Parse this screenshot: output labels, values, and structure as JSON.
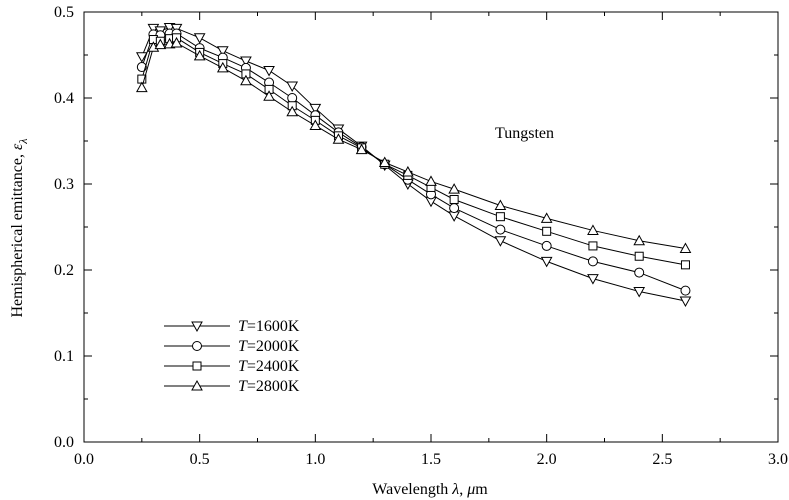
{
  "chart_data": {
    "type": "line",
    "title": "",
    "xlabel_prefix": "Wavelength ",
    "xlabel_symbol": "λ",
    "xlabel_suffix": ", ",
    "xlabel_unit_symbol": "μ",
    "xlabel_unit": "m",
    "ylabel_prefix": "Hemispherical emittance, ",
    "ylabel_symbol": "ε",
    "ylabel_subscript": "λ",
    "xlim": [
      0.0,
      3.0
    ],
    "ylim": [
      0.0,
      0.5
    ],
    "xticks": [
      "0.0",
      "0.5",
      "1.0",
      "1.5",
      "2.0",
      "2.5",
      "3.0"
    ],
    "yticks": [
      "0.0",
      "0.1",
      "0.2",
      "0.3",
      "0.4",
      "0.5"
    ],
    "annotation": "Tungsten",
    "legend_placement": "lower-left",
    "series": [
      {
        "name_var": "T",
        "name_rest": "=1600K",
        "marker": "triangle-down",
        "x": [
          0.25,
          0.3,
          0.33,
          0.37,
          0.4,
          0.5,
          0.6,
          0.7,
          0.8,
          0.9,
          1.0,
          1.1,
          1.2,
          1.3,
          1.4,
          1.5,
          1.6,
          1.8,
          2.0,
          2.2,
          2.4,
          2.6
        ],
        "y": [
          0.448,
          0.481,
          0.478,
          0.482,
          0.481,
          0.47,
          0.455,
          0.443,
          0.432,
          0.414,
          0.388,
          0.364,
          0.344,
          0.322,
          0.3,
          0.28,
          0.263,
          0.234,
          0.21,
          0.19,
          0.175,
          0.164
        ]
      },
      {
        "name_var": "T",
        "name_rest": "=2000K",
        "marker": "circle",
        "x": [
          0.25,
          0.3,
          0.33,
          0.37,
          0.4,
          0.5,
          0.6,
          0.7,
          0.8,
          0.9,
          1.0,
          1.1,
          1.2,
          1.3,
          1.4,
          1.5,
          1.6,
          1.8,
          2.0,
          2.2,
          2.4,
          2.6
        ],
        "y": [
          0.436,
          0.474,
          0.473,
          0.475,
          0.475,
          0.458,
          0.447,
          0.435,
          0.418,
          0.4,
          0.38,
          0.36,
          0.343,
          0.323,
          0.305,
          0.288,
          0.272,
          0.247,
          0.228,
          0.21,
          0.197,
          0.176
        ]
      },
      {
        "name_var": "T",
        "name_rest": "=2400K",
        "marker": "square",
        "x": [
          0.25,
          0.3,
          0.33,
          0.37,
          0.4,
          0.5,
          0.6,
          0.7,
          0.8,
          0.9,
          1.0,
          1.1,
          1.2,
          1.3,
          1.4,
          1.5,
          1.6,
          1.8,
          2.0,
          2.2,
          2.4,
          2.6
        ],
        "y": [
          0.422,
          0.468,
          0.466,
          0.469,
          0.47,
          0.453,
          0.44,
          0.428,
          0.41,
          0.391,
          0.374,
          0.356,
          0.342,
          0.323,
          0.31,
          0.296,
          0.282,
          0.262,
          0.245,
          0.228,
          0.216,
          0.206
        ]
      },
      {
        "name_var": "T",
        "name_rest": "=2800K",
        "marker": "triangle-up",
        "x": [
          0.25,
          0.3,
          0.33,
          0.37,
          0.4,
          0.5,
          0.6,
          0.7,
          0.8,
          0.9,
          1.0,
          1.1,
          1.2,
          1.3,
          1.4,
          1.5,
          1.6,
          1.8,
          2.0,
          2.2,
          2.4,
          2.6
        ],
        "y": [
          0.412,
          0.459,
          0.462,
          0.463,
          0.464,
          0.449,
          0.435,
          0.42,
          0.402,
          0.384,
          0.368,
          0.352,
          0.34,
          0.325,
          0.314,
          0.303,
          0.294,
          0.275,
          0.26,
          0.246,
          0.234,
          0.225
        ]
      }
    ]
  }
}
